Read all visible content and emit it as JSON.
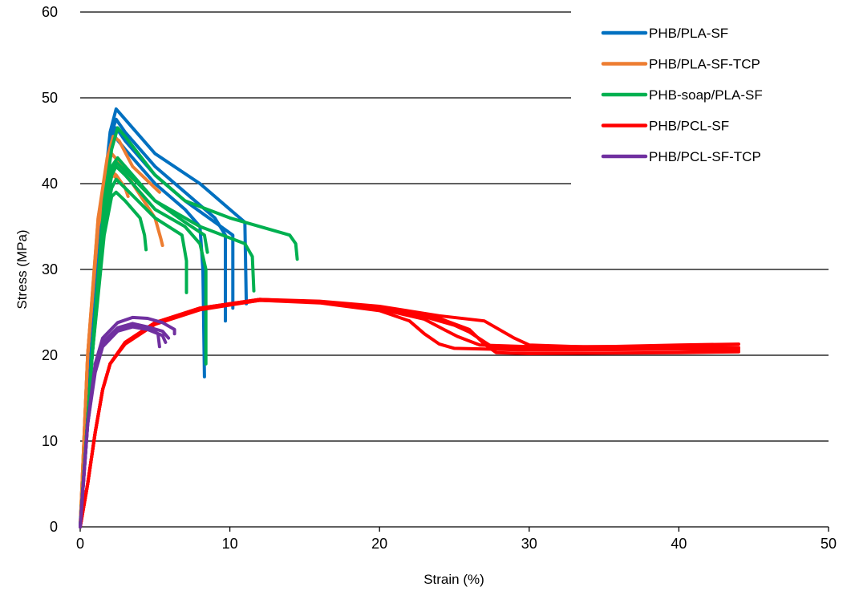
{
  "chart_data": {
    "type": "line",
    "title": "",
    "xlabel": "Strain (%)",
    "ylabel": "Stress (MPa)",
    "xlim": [
      0,
      50
    ],
    "ylim": [
      0,
      60
    ],
    "x_ticks": [
      "0",
      "10",
      "20",
      "30",
      "40",
      "50"
    ],
    "y_ticks": [
      "0",
      "10",
      "20",
      "30",
      "40",
      "50",
      "60"
    ],
    "grid": "horizontal",
    "legend_position": "top-right",
    "series": [
      {
        "name": "PHB/PLA-SF",
        "color": "#0070C0",
        "specimens": [
          [
            [
              0,
              0
            ],
            [
              0.7,
              20
            ],
            [
              1.4,
              36
            ],
            [
              2.0,
              46
            ],
            [
              2.4,
              48.7
            ],
            [
              3,
              47.5
            ],
            [
              5,
              43.5
            ],
            [
              8,
              40
            ],
            [
              10,
              37
            ],
            [
              11,
              35.5
            ],
            [
              11.1,
              26
            ]
          ],
          [
            [
              0,
              0
            ],
            [
              0.7,
              20
            ],
            [
              1.4,
              36
            ],
            [
              2.0,
              45.5
            ],
            [
              2.4,
              47.5
            ],
            [
              3,
              46
            ],
            [
              5,
              42
            ],
            [
              7,
              39
            ],
            [
              9,
              36
            ],
            [
              9.7,
              34
            ],
            [
              9.7,
              24
            ]
          ],
          [
            [
              0,
              0
            ],
            [
              0.7,
              20
            ],
            [
              1.4,
              36
            ],
            [
              2.0,
              45
            ],
            [
              2.4,
              46.5
            ],
            [
              3,
              45
            ],
            [
              5,
              41
            ],
            [
              7,
              38
            ],
            [
              9,
              35.5
            ],
            [
              10.2,
              34
            ],
            [
              10.2,
              25.5
            ]
          ],
          [
            [
              0,
              0
            ],
            [
              0.7,
              20
            ],
            [
              1.4,
              36
            ],
            [
              2.0,
              44
            ],
            [
              2.3,
              45.5
            ],
            [
              3,
              44
            ],
            [
              5,
              40
            ],
            [
              7,
              37
            ],
            [
              8,
              35
            ],
            [
              8.2,
              30
            ],
            [
              8.3,
              17.5
            ]
          ]
        ]
      },
      {
        "name": "PHB/PLA-SF-TCP",
        "color": "#ED7D31",
        "specimens": [
          [
            [
              0,
              0
            ],
            [
              0.5,
              20
            ],
            [
              1.2,
              36
            ],
            [
              1.8,
              43
            ],
            [
              2.2,
              45.5
            ],
            [
              2.6,
              45
            ],
            [
              3.5,
              42
            ],
            [
              5,
              39.5
            ],
            [
              5.3,
              39
            ]
          ],
          [
            [
              0,
              0
            ],
            [
              0.5,
              20
            ],
            [
              1.2,
              36
            ],
            [
              1.8,
              42
            ],
            [
              2.1,
              43.5
            ],
            [
              2.6,
              42.5
            ],
            [
              3.5,
              40
            ],
            [
              5,
              36
            ],
            [
              5.4,
              33.5
            ],
            [
              5.5,
              32.8
            ]
          ],
          [
            [
              0,
              0
            ],
            [
              0.5,
              20
            ],
            [
              1.2,
              35
            ],
            [
              1.7,
              40
            ],
            [
              2.0,
              41.5
            ],
            [
              2.4,
              41
            ],
            [
              3,
              39.5
            ],
            [
              3.2,
              38.5
            ]
          ],
          [
            [
              0,
              0
            ],
            [
              0.5,
              20
            ],
            [
              1.2,
              35
            ],
            [
              1.8,
              40
            ],
            [
              2.2,
              41
            ],
            [
              2.8,
              40
            ],
            [
              3.2,
              39
            ]
          ]
        ]
      },
      {
        "name": "PHB-soap/PLA-SF",
        "color": "#00B050",
        "specimens": [
          [
            [
              0,
              0
            ],
            [
              0.8,
              20
            ],
            [
              1.6,
              38
            ],
            [
              2.1,
              44
            ],
            [
              2.5,
              46.5
            ],
            [
              3,
              45.5
            ],
            [
              5,
              41
            ],
            [
              7,
              38
            ],
            [
              10,
              36
            ],
            [
              14,
              34
            ],
            [
              14.4,
              33
            ],
            [
              14.5,
              31.2
            ]
          ],
          [
            [
              0,
              0
            ],
            [
              0.8,
              20
            ],
            [
              1.6,
              37
            ],
            [
              2.1,
              42
            ],
            [
              2.5,
              43
            ],
            [
              3,
              42
            ],
            [
              5,
              38
            ],
            [
              8,
              35
            ],
            [
              11,
              33
            ],
            [
              11.5,
              31.5
            ],
            [
              11.6,
              27.5
            ]
          ],
          [
            [
              0,
              0
            ],
            [
              0.8,
              20
            ],
            [
              1.6,
              36
            ],
            [
              2.1,
              41
            ],
            [
              2.4,
              42
            ],
            [
              3,
              41
            ],
            [
              5,
              37
            ],
            [
              7,
              35
            ],
            [
              8,
              33
            ],
            [
              8.4,
              30
            ],
            [
              8.4,
              19
            ]
          ],
          [
            [
              0,
              0
            ],
            [
              0.8,
              20
            ],
            [
              1.6,
              35
            ],
            [
              2.1,
              39.5
            ],
            [
              2.4,
              40.5
            ],
            [
              3,
              39.5
            ],
            [
              5,
              36
            ],
            [
              6.8,
              34
            ],
            [
              7.1,
              31
            ],
            [
              7.1,
              27.3
            ]
          ],
          [
            [
              0,
              0
            ],
            [
              0.8,
              20
            ],
            [
              1.6,
              34
            ],
            [
              2.1,
              38.5
            ],
            [
              2.4,
              39
            ],
            [
              3,
              38
            ],
            [
              4,
              36
            ],
            [
              4.3,
              34
            ],
            [
              4.4,
              32.3
            ]
          ],
          [
            [
              0,
              0
            ],
            [
              0.8,
              20
            ],
            [
              1.6,
              36
            ],
            [
              2.1,
              41
            ],
            [
              2.4,
              42.5
            ],
            [
              3,
              41.5
            ],
            [
              5,
              38
            ],
            [
              7,
              35.5
            ],
            [
              8.3,
              34
            ],
            [
              8.5,
              32
            ]
          ]
        ]
      },
      {
        "name": "PHB/PCL-SF",
        "color": "#FF0000",
        "specimens": [
          [
            [
              0,
              0
            ],
            [
              0.5,
              5
            ],
            [
              1,
              11
            ],
            [
              1.5,
              16
            ],
            [
              2,
              19
            ],
            [
              3,
              21.5
            ],
            [
              5,
              23.8
            ],
            [
              8,
              25.5
            ],
            [
              12,
              26.5
            ],
            [
              16,
              26.2
            ],
            [
              20,
              25.5
            ],
            [
              23,
              24.5
            ],
            [
              25,
              23.5
            ],
            [
              26,
              22.7
            ],
            [
              27.5,
              21
            ],
            [
              30,
              20.9
            ],
            [
              35,
              21
            ],
            [
              40,
              21.2
            ],
            [
              44,
              21.3
            ]
          ],
          [
            [
              0,
              0
            ],
            [
              0.5,
              5
            ],
            [
              1,
              11
            ],
            [
              1.5,
              16
            ],
            [
              2,
              19
            ],
            [
              3,
              21.4
            ],
            [
              5,
              23.7
            ],
            [
              8,
              25.4
            ],
            [
              12,
              26.4
            ],
            [
              16,
              26.2
            ],
            [
              20,
              25.4
            ],
            [
              23,
              24.2
            ],
            [
              24.3,
              23
            ],
            [
              25.2,
              22.2
            ],
            [
              26.7,
              21.2
            ],
            [
              30,
              21
            ],
            [
              40,
              21
            ],
            [
              44,
              20.9
            ]
          ],
          [
            [
              0,
              0
            ],
            [
              0.5,
              5
            ],
            [
              1,
              11
            ],
            [
              1.5,
              16
            ],
            [
              2,
              19
            ],
            [
              3,
              21.3
            ],
            [
              5,
              23.6
            ],
            [
              8,
              25.3
            ],
            [
              12,
              26.4
            ],
            [
              16,
              26.1
            ],
            [
              20,
              25.2
            ],
            [
              22,
              24
            ],
            [
              23,
              22.5
            ],
            [
              24,
              21.3
            ],
            [
              25,
              20.8
            ],
            [
              30,
              20.6
            ],
            [
              40,
              20.7
            ],
            [
              44,
              20.8
            ]
          ],
          [
            [
              0,
              0
            ],
            [
              0.5,
              5
            ],
            [
              1,
              11
            ],
            [
              1.5,
              16
            ],
            [
              2,
              19
            ],
            [
              3,
              21.5
            ],
            [
              5,
              23.8
            ],
            [
              8,
              25.5
            ],
            [
              12,
              26.5
            ],
            [
              16,
              26.3
            ],
            [
              20,
              25.7
            ],
            [
              24,
              24.6
            ],
            [
              27,
              24
            ],
            [
              29,
              22
            ],
            [
              30,
              21.2
            ],
            [
              35,
              20.9
            ],
            [
              40,
              20.7
            ],
            [
              44,
              20.6
            ]
          ],
          [
            [
              0,
              0
            ],
            [
              0.5,
              5
            ],
            [
              1,
              11
            ],
            [
              1.5,
              16
            ],
            [
              2,
              19
            ],
            [
              3,
              21.4
            ],
            [
              5,
              23.7
            ],
            [
              8,
              25.4
            ],
            [
              12,
              26.5
            ],
            [
              16,
              26.2
            ],
            [
              20,
              25.6
            ],
            [
              24,
              24.3
            ],
            [
              26,
              23
            ],
            [
              27,
              21.3
            ],
            [
              27.8,
              20.3
            ],
            [
              30,
              20.2
            ],
            [
              40,
              20.3
            ],
            [
              44,
              20.4
            ]
          ]
        ]
      },
      {
        "name": "PHB/PCL-SF-TCP",
        "color": "#7030A0",
        "specimens": [
          [
            [
              0,
              0
            ],
            [
              0.5,
              12
            ],
            [
              1,
              19
            ],
            [
              1.5,
              22
            ],
            [
              2.5,
              23.8
            ],
            [
              3.5,
              24.4
            ],
            [
              4.5,
              24.3
            ],
            [
              5.5,
              23.8
            ],
            [
              6.3,
              23
            ],
            [
              6.3,
              22.5
            ]
          ],
          [
            [
              0,
              0
            ],
            [
              0.5,
              12
            ],
            [
              1,
              18.5
            ],
            [
              1.5,
              21.5
            ],
            [
              2.5,
              23.2
            ],
            [
              3.5,
              23.7
            ],
            [
              4.5,
              23.3
            ],
            [
              5.2,
              22.5
            ],
            [
              5.3,
              21
            ]
          ],
          [
            [
              0,
              0
            ],
            [
              0.5,
              12
            ],
            [
              1,
              18
            ],
            [
              1.5,
              21
            ],
            [
              2.5,
              22.8
            ],
            [
              3.5,
              23.3
            ],
            [
              4.5,
              23
            ],
            [
              5.5,
              22.3
            ],
            [
              5.7,
              21.5
            ]
          ],
          [
            [
              0,
              0
            ],
            [
              0.5,
              12
            ],
            [
              1,
              18.5
            ],
            [
              1.5,
              21.3
            ],
            [
              2.5,
              23
            ],
            [
              3.5,
              23.4
            ],
            [
              4.5,
              23.3
            ],
            [
              5.5,
              22.8
            ],
            [
              5.9,
              22
            ]
          ]
        ]
      }
    ]
  }
}
